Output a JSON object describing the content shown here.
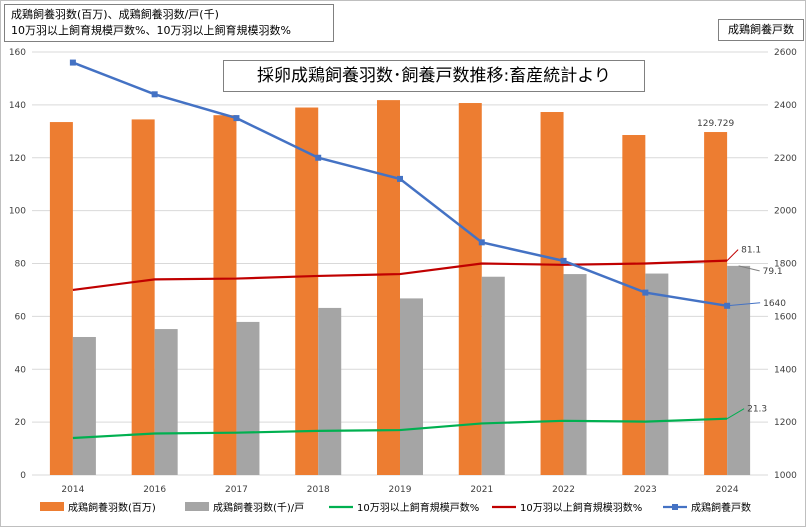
{
  "notes": {
    "left_line1": "成鶏飼養羽数(百万)、成鶏飼養羽数/戸(千)",
    "left_line2": "10万羽以上飼育規模戸数%、10万羽以上飼育規模羽数%",
    "right": "成鶏飼養戸数"
  },
  "chart_data": {
    "type": "bar",
    "title": "採卵成鶏飼養羽数･飼養戸数推移:畜産統計より",
    "categories": [
      "2014",
      "2016",
      "2017",
      "2018",
      "2019",
      "2021",
      "2022",
      "2023",
      "2024"
    ],
    "ylim_left": [
      0,
      160
    ],
    "yticks_left": [
      0,
      20,
      40,
      60,
      80,
      100,
      120,
      140,
      160
    ],
    "ylim_right": [
      1000,
      2600
    ],
    "yticks_right": [
      1000,
      1200,
      1400,
      1600,
      1800,
      2000,
      2200,
      2400,
      2600
    ],
    "grid": true,
    "legend_position": "bottom",
    "series": [
      {
        "name": "成鶏飼養羽数(百万)",
        "kind": "bar",
        "axis": "left",
        "color": "#ED7D31",
        "values": [
          133.5,
          134.5,
          136.1,
          139.0,
          141.8,
          140.7,
          137.3,
          128.6,
          129.729
        ]
      },
      {
        "name": "成鶏飼養羽数(千)/戸",
        "kind": "bar",
        "axis": "left",
        "color": "#A5A5A5",
        "values": [
          52.2,
          55.2,
          57.9,
          63.2,
          66.8,
          75.0,
          76.0,
          76.2,
          79.1
        ]
      },
      {
        "name": "10万羽以上飼育規模戸数%",
        "kind": "line",
        "axis": "left",
        "color": "#00B050",
        "values": [
          14.0,
          15.7,
          16.0,
          16.7,
          17.0,
          19.5,
          20.5,
          20.2,
          21.3
        ]
      },
      {
        "name": "10万羽以上飼育規模羽数%",
        "kind": "line",
        "axis": "left",
        "color": "#C00000",
        "values": [
          70.0,
          74.0,
          74.3,
          75.3,
          76.0,
          80.0,
          79.5,
          80.0,
          81.1
        ]
      },
      {
        "name": "成鶏飼養戸数",
        "kind": "line",
        "axis": "right",
        "color": "#4472C4",
        "marker": "square",
        "values": [
          2560,
          2440,
          2350,
          2200,
          2120,
          1880,
          1810,
          1690,
          1640
        ]
      }
    ],
    "data_labels": [
      {
        "series": 0,
        "index": 8,
        "text": "129.729"
      },
      {
        "series": 1,
        "index": 8,
        "text": "79.1"
      },
      {
        "series": 2,
        "index": 8,
        "text": "21.3"
      },
      {
        "series": 3,
        "index": 8,
        "text": "81.1"
      },
      {
        "series": 4,
        "index": 8,
        "text": "1640"
      }
    ]
  }
}
